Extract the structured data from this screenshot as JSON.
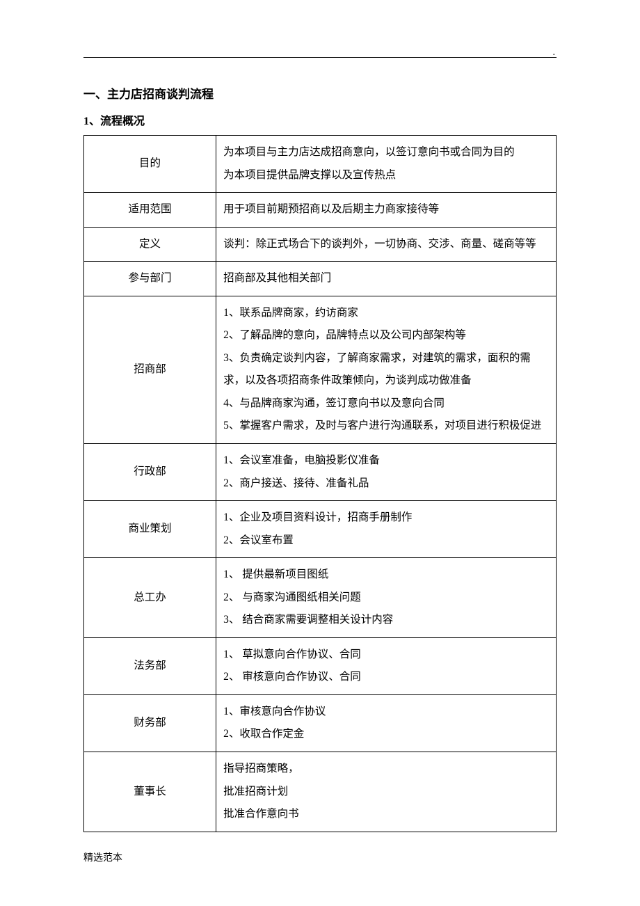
{
  "top_dot": ".",
  "heading": "一、主力店招商谈判流程",
  "subheading": "1、流程概况",
  "rows": [
    {
      "label": "目的",
      "content": "为本项目与主力店达成招商意向，以签订意向书或合同为目的\n为本项目提供品牌支撑以及宣传热点"
    },
    {
      "label": "适用范围",
      "content": "用于项目前期预招商以及后期主力商家接待等"
    },
    {
      "label": "定义",
      "content": "谈判：除正式场合下的谈判外，一切协商、交涉、商量、磋商等等"
    },
    {
      "label": "参与部门",
      "content": "招商部及其他相关部门"
    },
    {
      "label": "招商部",
      "content": "1、联系品牌商家，约访商家\n2、了解品牌的意向，品牌特点以及公司内部架构等\n3、负责确定谈判内容，了解商家需求，对建筑的需求，面积的需求，以及各项招商条件政策倾向，为谈判成功做准备\n4、与品牌商家沟通，签订意向书以及意向合同\n5、掌握客户需求，及时与客户进行沟通联系，对项目进行积极促进"
    },
    {
      "label": "行政部",
      "content": "1、会议室准备，电脑投影仪准备\n2、商户接送、接待、准备礼品"
    },
    {
      "label": "商业策划",
      "content": "1、企业及项目资料设计，招商手册制作\n2、会议室布置"
    },
    {
      "label": "总工办",
      "content": "1、 提供最新项目图纸\n2、 与商家沟通图纸相关问题\n3、 结合商家需要调整相关设计内容"
    },
    {
      "label": "法务部",
      "content": "1、 草拟意向合作协议、合同\n2、 审核意向合作协议、合同"
    },
    {
      "label": "财务部",
      "content": "1、审核意向合作协议\n2、收取合作定金"
    },
    {
      "label": "董事长",
      "content": "指导招商策略，\n批准招商计划\n批准合作意向书"
    }
  ],
  "footer": "精选范本"
}
